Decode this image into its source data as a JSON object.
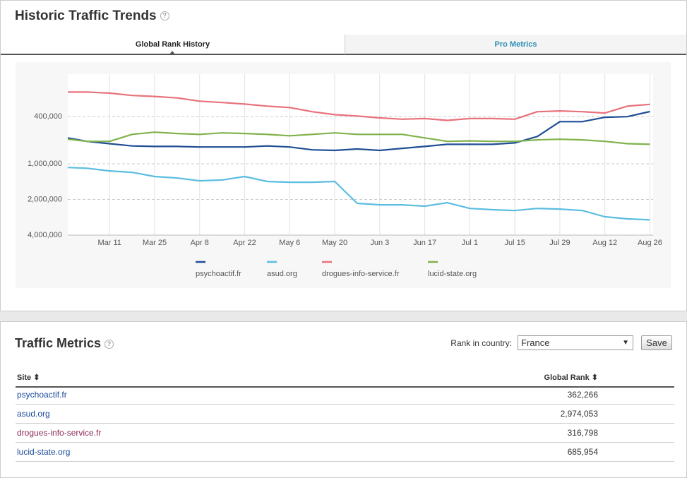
{
  "header": {
    "title": "Historic Traffic Trends"
  },
  "tabs": [
    "Global Rank History",
    "Pro Metrics"
  ],
  "chart_data": {
    "type": "line",
    "x": [
      "Feb 26",
      "Mar 4",
      "Mar 11",
      "Mar 18",
      "Mar 25",
      "Apr 1",
      "Apr 8",
      "Apr 15",
      "Apr 22",
      "Apr 29",
      "May 6",
      "May 13",
      "May 20",
      "May 27",
      "Jun 3",
      "Jun 10",
      "Jun 17",
      "Jun 24",
      "Jul 1",
      "Jul 8",
      "Jul 15",
      "Jul 22",
      "Jul 29",
      "Aug 5",
      "Aug 12",
      "Aug 19",
      "Aug 26"
    ],
    "xlim": [
      "Feb 26",
      "Aug 27"
    ],
    "xticks": [
      "Mar 11",
      "Mar 25",
      "Apr 8",
      "Apr 22",
      "May 6",
      "May 20",
      "Jun 3",
      "Jun 17",
      "Jul 1",
      "Jul 15",
      "Jul 29",
      "Aug 12",
      "Aug 26"
    ],
    "ylim": [
      175000,
      4000000
    ],
    "log_scale": true,
    "y_inverted": true,
    "grid": true,
    "yticks": [
      {
        "value": 400000,
        "label": "400,000"
      },
      {
        "value": 1000000,
        "label": "1,000,000"
      },
      {
        "value": 2000000,
        "label": "2,000,000"
      },
      {
        "value": 4000000,
        "label": "4,000,000"
      }
    ],
    "series": [
      {
        "name": "psychoactif.fr",
        "color": "#1f4e96",
        "values": [
          604000,
          646000,
          676000,
          707000,
          714000,
          714000,
          721000,
          721000,
          721000,
          707000,
          721000,
          762000,
          770000,
          750000,
          770000,
          740000,
          714000,
          685000,
          685000,
          685000,
          666000,
          588000,
          441000,
          441000,
          405000,
          400000,
          362000
        ]
      },
      {
        "name": "asud.org",
        "color": "#5bbde0",
        "values": [
          1074000,
          1090000,
          1148000,
          1180000,
          1280000,
          1318000,
          1392000,
          1370000,
          1280000,
          1410000,
          1430000,
          1430000,
          1410000,
          2158000,
          2220000,
          2220000,
          2280000,
          2130000,
          2380000,
          2440000,
          2480000,
          2380000,
          2410000,
          2480000,
          2800000,
          2917000,
          2974000
        ]
      },
      {
        "name": "drogues-info-service.fr",
        "color": "#e8717c",
        "values": [
          248000,
          248000,
          253000,
          265000,
          270000,
          278000,
          296000,
          304000,
          313000,
          326000,
          335000,
          363000,
          385000,
          395000,
          410000,
          420000,
          415000,
          430000,
          415000,
          415000,
          420000,
          363000,
          358000,
          363000,
          373000,
          326000,
          315000
        ]
      },
      {
        "name": "lucid-state.org",
        "color": "#80b24c",
        "values": [
          620000,
          646000,
          646000,
          564000,
          541000,
          555000,
          564000,
          548000,
          555000,
          564000,
          580000,
          564000,
          548000,
          564000,
          564000,
          564000,
          604000,
          646000,
          640000,
          646000,
          646000,
          628000,
          620000,
          628000,
          646000,
          676000,
          685000
        ]
      }
    ]
  },
  "metrics": {
    "title": "Traffic Metrics",
    "country_label": "Rank in country:",
    "country": "France",
    "save": "Save",
    "columns": [
      "Site",
      "Global Rank"
    ],
    "rows": [
      [
        "psychoactif.fr",
        "362,266"
      ],
      [
        "asud.org",
        "2,974,053"
      ],
      [
        "drogues-info-service.fr",
        "316,798"
      ],
      [
        "lucid-state.org",
        "685,954"
      ]
    ]
  }
}
